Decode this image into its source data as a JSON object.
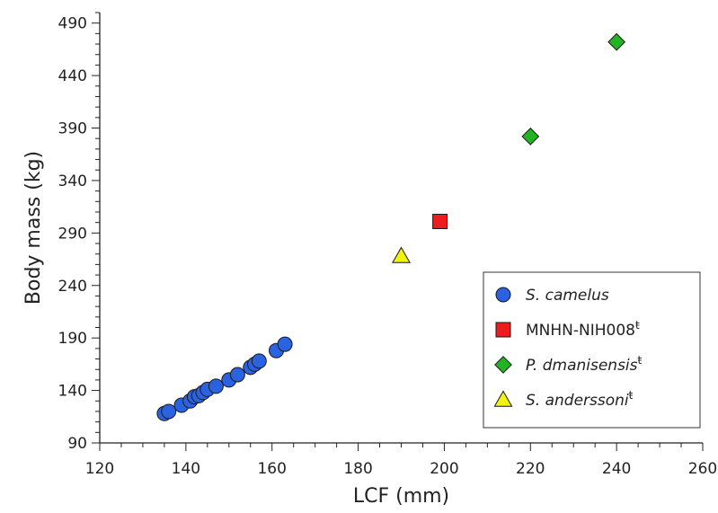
{
  "chart_data": {
    "type": "scatter",
    "xlabel": "LCF (mm)",
    "ylabel": "Body mass (kg)",
    "xlim": [
      120,
      260
    ],
    "ylim": [
      90,
      500
    ],
    "x_ticks": [
      120,
      140,
      160,
      180,
      200,
      220,
      240,
      260
    ],
    "y_ticks": [
      90,
      140,
      190,
      240,
      290,
      340,
      390,
      440,
      490
    ],
    "x_minor_step": 5,
    "y_minor_step": 10,
    "grid": false,
    "legend_position": "bottom-right",
    "series": [
      {
        "name": "S. camelus",
        "name_italic": true,
        "suffix": "",
        "marker": "circle",
        "color": "#2b62e0",
        "points": [
          [
            135,
            118
          ],
          [
            136,
            120
          ],
          [
            139,
            126
          ],
          [
            141,
            130
          ],
          [
            142,
            134
          ],
          [
            143,
            135
          ],
          [
            144,
            138
          ],
          [
            145,
            141
          ],
          [
            147,
            144
          ],
          [
            150,
            150
          ],
          [
            152,
            155
          ],
          [
            155,
            162
          ],
          [
            156,
            165
          ],
          [
            157,
            168
          ],
          [
            161,
            178
          ],
          [
            163,
            184
          ]
        ]
      },
      {
        "name": "MNHN-NIH008",
        "name_italic": false,
        "suffix": "ŧ",
        "marker": "square",
        "color": "#ee1c1c",
        "points": [
          [
            199,
            301
          ]
        ]
      },
      {
        "name": "P. dmanisensis",
        "name_italic": true,
        "suffix": "ŧ",
        "marker": "diamond",
        "color": "#22b322",
        "points": [
          [
            220,
            382
          ],
          [
            240,
            472
          ]
        ]
      },
      {
        "name": "S. anderssoni",
        "name_italic": true,
        "suffix": "ŧ",
        "marker": "triangle",
        "color": "#f2f20e",
        "points": [
          [
            190,
            268
          ]
        ]
      }
    ]
  }
}
